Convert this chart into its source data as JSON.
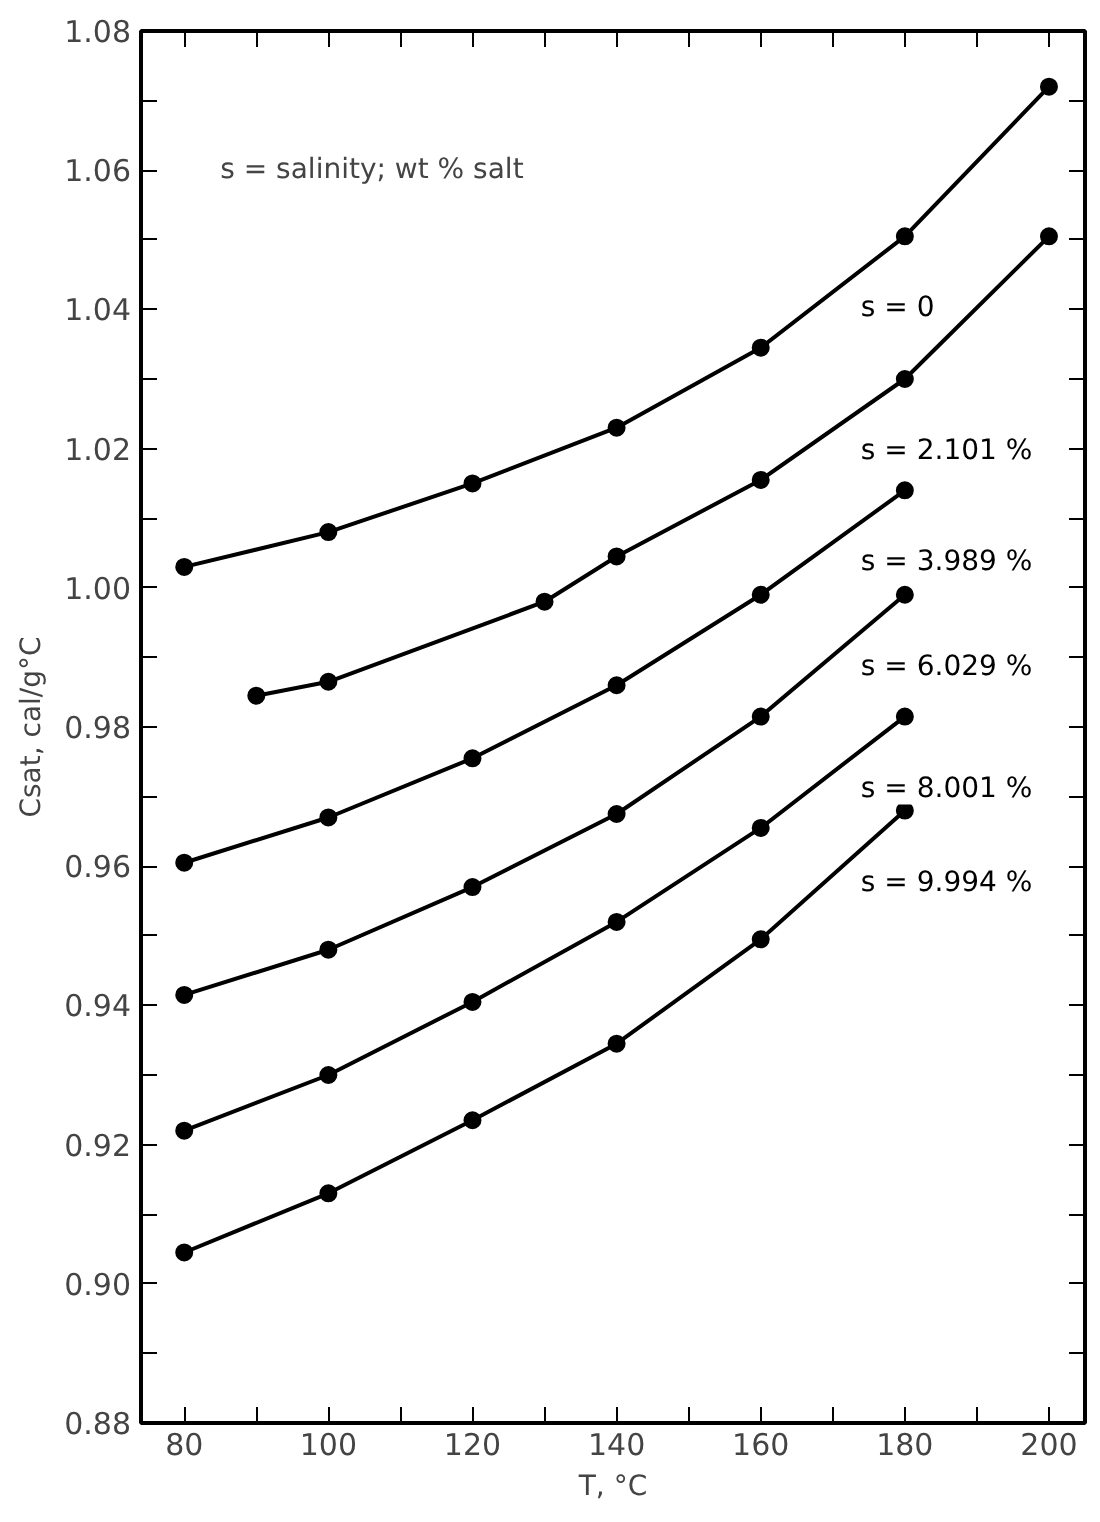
{
  "chart_data": {
    "type": "line",
    "xlabel": "T, °C",
    "ylabel": "Csat, cal/g°C",
    "marker": "circle",
    "line_style": "solid",
    "grid": false,
    "legend": "right",
    "xlim": [
      74,
      205
    ],
    "ylim": [
      0.88,
      1.08
    ],
    "xticks": [
      80,
      {
        "value": 90,
        "label": null
      },
      100,
      {
        "value": 110,
        "label": null
      },
      120,
      {
        "value": 130,
        "label": null
      },
      140,
      {
        "value": 150,
        "label": null
      },
      160,
      {
        "value": 170,
        "label": null
      },
      180,
      {
        "value": 190,
        "label": null
      },
      200
    ],
    "yticks": [
      {
        "value": 0.88,
        "label": "0.88"
      },
      {
        "value": 0.89,
        "label": null
      },
      {
        "value": 0.9,
        "label": "0.90"
      },
      {
        "value": 0.91,
        "label": null
      },
      {
        "value": 0.92,
        "label": "0.92"
      },
      {
        "value": 0.93,
        "label": null
      },
      {
        "value": 0.94,
        "label": "0.94"
      },
      {
        "value": 0.95,
        "label": null
      },
      {
        "value": 0.96,
        "label": "0.96"
      },
      {
        "value": 0.97,
        "label": null
      },
      {
        "value": 0.98,
        "label": "0.98"
      },
      {
        "value": 0.99,
        "label": null
      },
      {
        "value": 1.0,
        "label": "1.00"
      },
      {
        "value": 1.01,
        "label": null
      },
      {
        "value": 1.02,
        "label": "1.02"
      },
      {
        "value": 1.03,
        "label": null
      },
      {
        "value": 1.04,
        "label": "1.04"
      },
      {
        "value": 1.05,
        "label": null
      },
      {
        "value": 1.06,
        "label": "1.06"
      },
      {
        "value": 1.07,
        "label": null
      },
      {
        "value": 1.08,
        "label": "1.08"
      }
    ],
    "series": [
      {
        "name": "s = 0",
        "color": "#000000",
        "x": [
          80,
          100,
          120,
          140,
          160,
          180,
          200
        ],
        "values": [
          1.003,
          1.008,
          1.015,
          1.023,
          1.0345,
          1.0505,
          1.072
        ]
      },
      {
        "name": "s = 2.101 %",
        "color": "#000000",
        "x": [
          90,
          100,
          130,
          140,
          160,
          180,
          200
        ],
        "values": [
          0.9845,
          0.9865,
          0.998,
          1.0045,
          1.0155,
          1.03,
          1.0505
        ]
      },
      {
        "name": "s = 3.989 %",
        "color": "#000000",
        "x": [
          80,
          100,
          120,
          140,
          160,
          180
        ],
        "values": [
          0.9605,
          0.967,
          0.9755,
          0.986,
          0.999,
          1.014
        ]
      },
      {
        "name": "s = 6.029 %",
        "color": "#000000",
        "x": [
          80,
          100,
          120,
          140,
          160,
          180
        ],
        "values": [
          0.9415,
          0.948,
          0.957,
          0.9675,
          0.9815,
          0.999
        ]
      },
      {
        "name": "s = 8.001 %",
        "color": "#000000",
        "x": [
          80,
          100,
          120,
          140,
          160,
          180
        ],
        "values": [
          0.922,
          0.93,
          0.9405,
          0.952,
          0.9655,
          0.9815
        ]
      },
      {
        "name": "s = 9.994 %",
        "color": "#000000",
        "x": [
          80,
          100,
          120,
          140,
          160,
          180
        ],
        "values": [
          0.9045,
          0.913,
          0.9235,
          0.9345,
          0.9495,
          0.968
        ]
      }
    ],
    "annotations": [
      "s = salinity; wt % salt"
    ]
  }
}
